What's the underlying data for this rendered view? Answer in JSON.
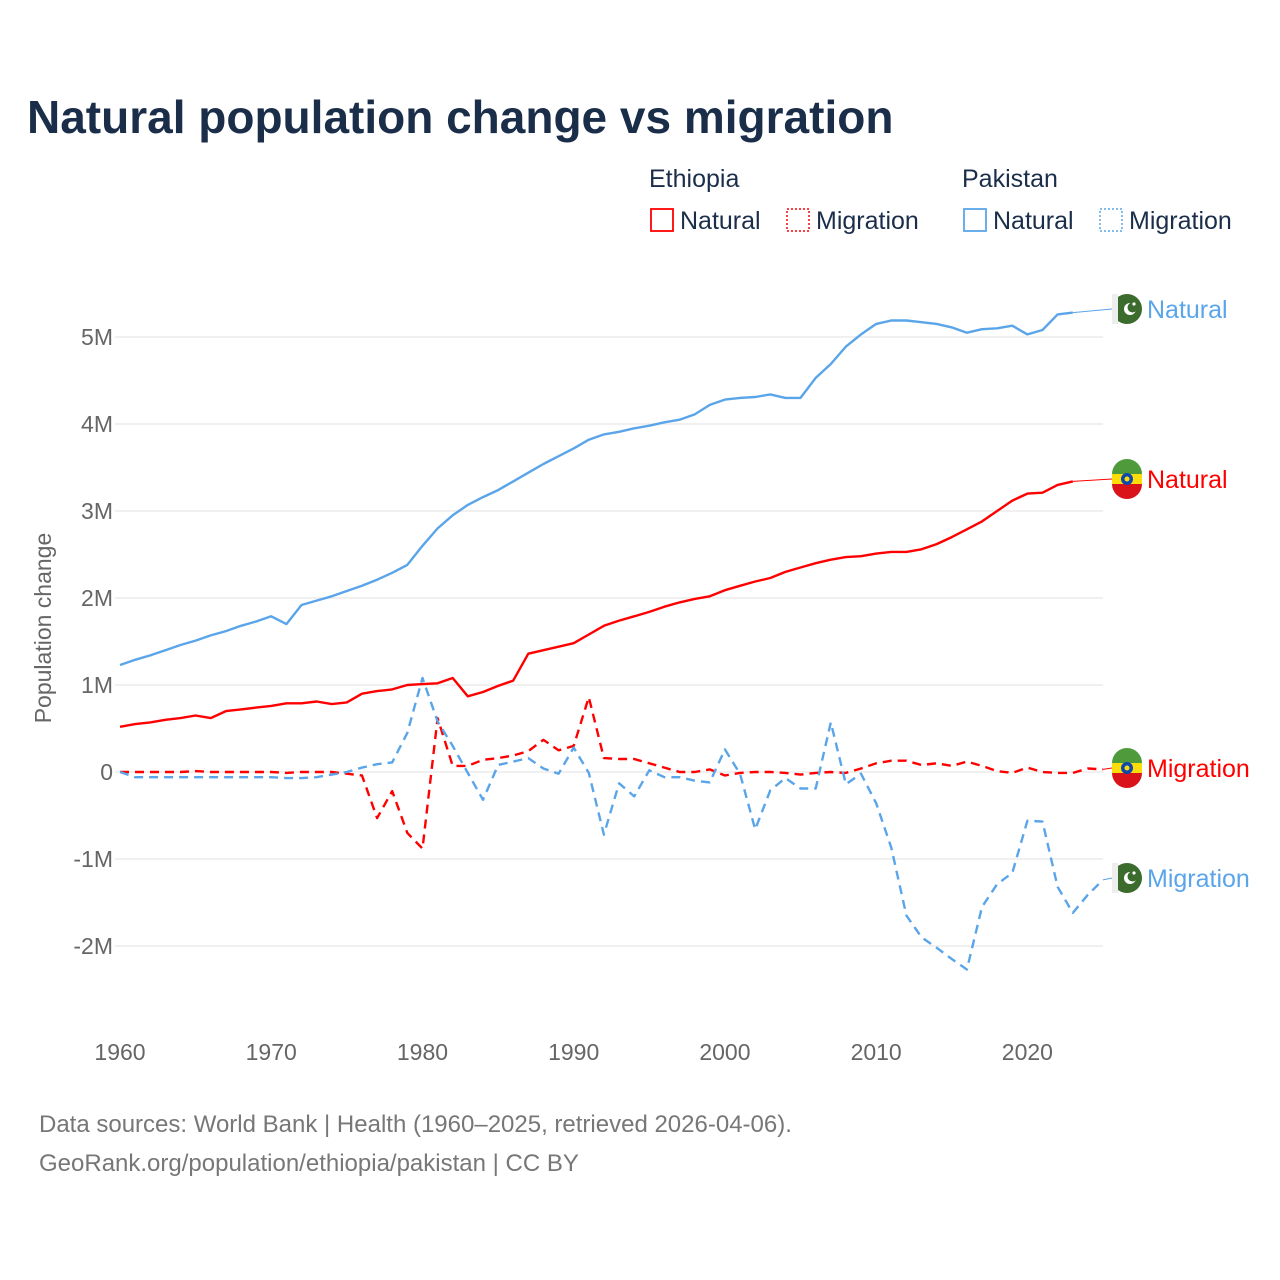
{
  "title": "Natural population change vs migration",
  "legend": {
    "groups": [
      {
        "country": "Ethiopia",
        "items": [
          "Natural",
          "Migration"
        ]
      },
      {
        "country": "Pakistan",
        "items": [
          "Natural",
          "Migration"
        ]
      }
    ]
  },
  "colors": {
    "ethiopia": "#ff0000",
    "pakistan": "#5aa5ea",
    "title": "#1a2e4a"
  },
  "sources": {
    "line1": "Data sources: World Bank | Health (1960–2025, retrieved 2026-04-06).",
    "line2": "GeoRank.org/population/ethiopia/pakistan | CC BY"
  },
  "chart_data": {
    "type": "line",
    "title": "Natural population change vs migration",
    "xlabel": "",
    "ylabel": "Population change",
    "xlim": [
      1960,
      2025
    ],
    "ylim": [
      -2.7,
      5.5
    ],
    "y_unit": "millions",
    "x_ticks": [
      1960,
      1970,
      1980,
      1990,
      2000,
      2010,
      2020
    ],
    "x_tick_labels": [
      "1960",
      "1970",
      "1980",
      "1990",
      "2000",
      "2010",
      "2020"
    ],
    "y_ticks": [
      -2,
      -1,
      0,
      1,
      2,
      3,
      4,
      5
    ],
    "y_tick_labels": [
      "-2M",
      "-1M",
      "0",
      "1M",
      "2M",
      "3M",
      "4M",
      "5M"
    ],
    "grid": true,
    "legend_position": "top-right",
    "series": [
      {
        "name": "Pakistan Natural",
        "country": "Pakistan",
        "kind": "Natural",
        "end_label": "Natural",
        "color": "#5aa5ea",
        "dashed": false,
        "start": 1960,
        "values": [
          1.23,
          1.29,
          1.34,
          1.4,
          1.46,
          1.51,
          1.57,
          1.62,
          1.68,
          1.73,
          1.79,
          1.7,
          1.92,
          1.97,
          2.02,
          2.08,
          2.14,
          2.21,
          2.29,
          2.38,
          2.6,
          2.8,
          2.95,
          3.07,
          3.16,
          3.24,
          3.34,
          3.44,
          3.54,
          3.63,
          3.72,
          3.82,
          3.88,
          3.91,
          3.95,
          3.98,
          4.02,
          4.05,
          4.11,
          4.22,
          4.28,
          4.3,
          4.31,
          4.34,
          4.3,
          4.3,
          4.53,
          4.69,
          4.89,
          5.03,
          5.15,
          5.19,
          5.19,
          5.17,
          5.15,
          5.11,
          5.05,
          5.09,
          5.1,
          5.13,
          5.03,
          5.08,
          5.26,
          5.28
        ]
      },
      {
        "name": "Ethiopia Natural",
        "country": "Ethiopia",
        "kind": "Natural",
        "end_label": "Natural",
        "color": "#ff0000",
        "dashed": false,
        "start": 1960,
        "values": [
          0.52,
          0.55,
          0.57,
          0.6,
          0.62,
          0.65,
          0.62,
          0.7,
          0.72,
          0.74,
          0.76,
          0.79,
          0.79,
          0.81,
          0.78,
          0.8,
          0.9,
          0.93,
          0.95,
          1.0,
          1.01,
          1.02,
          1.08,
          0.87,
          0.92,
          0.99,
          1.05,
          1.36,
          1.4,
          1.44,
          1.48,
          1.58,
          1.68,
          1.74,
          1.79,
          1.84,
          1.9,
          1.95,
          1.99,
          2.02,
          2.09,
          2.14,
          2.19,
          2.23,
          2.3,
          2.35,
          2.4,
          2.44,
          2.47,
          2.48,
          2.51,
          2.53,
          2.53,
          2.56,
          2.62,
          2.7,
          2.79,
          2.88,
          3.0,
          3.12,
          3.2,
          3.21,
          3.3,
          3.34
        ]
      },
      {
        "name": "Ethiopia Migration",
        "country": "Ethiopia",
        "kind": "Migration",
        "end_label": "Migration",
        "color": "#ff0000",
        "dashed": true,
        "start": 1960,
        "values": [
          0.0,
          0.0,
          0.0,
          0.0,
          0.0,
          0.01,
          0.0,
          0.0,
          0.0,
          0.0,
          0.0,
          -0.01,
          0.0,
          0.0,
          0.0,
          -0.02,
          -0.04,
          -0.53,
          -0.22,
          -0.7,
          -0.88,
          0.62,
          0.07,
          0.07,
          0.14,
          0.16,
          0.19,
          0.24,
          0.37,
          0.25,
          0.3,
          0.86,
          0.16,
          0.15,
          0.15,
          0.1,
          0.05,
          0.0,
          0.0,
          0.03,
          -0.04,
          -0.01,
          0.0,
          0.0,
          -0.01,
          -0.03,
          -0.01,
          0.0,
          -0.01,
          0.04,
          0.1,
          0.13,
          0.13,
          0.08,
          0.1,
          0.07,
          0.12,
          0.07,
          0.01,
          -0.01,
          0.05,
          0.0,
          -0.01,
          -0.01,
          0.04,
          0.03
        ]
      },
      {
        "name": "Pakistan Migration",
        "country": "Pakistan",
        "kind": "Migration",
        "end_label": "Migration",
        "color": "#5aa5ea",
        "dashed": true,
        "start": 1960,
        "values": [
          0.0,
          -0.06,
          -0.06,
          -0.06,
          -0.06,
          -0.06,
          -0.06,
          -0.06,
          -0.06,
          -0.06,
          -0.06,
          -0.07,
          -0.07,
          -0.06,
          -0.03,
          0.0,
          0.05,
          0.09,
          0.11,
          0.45,
          1.08,
          0.58,
          0.3,
          -0.01,
          -0.32,
          0.08,
          0.12,
          0.16,
          0.04,
          -0.02,
          0.28,
          -0.01,
          -0.72,
          -0.13,
          -0.28,
          0.02,
          -0.06,
          -0.06,
          -0.1,
          -0.12,
          0.26,
          -0.02,
          -0.66,
          -0.21,
          -0.07,
          -0.19,
          -0.19,
          0.57,
          -0.14,
          -0.02,
          -0.36,
          -0.87,
          -1.65,
          -1.9,
          -2.02,
          -2.15,
          -2.27,
          -1.55,
          -1.29,
          -1.16,
          -0.56,
          -0.57,
          -1.32,
          -1.62,
          -1.41,
          -1.24
        ]
      }
    ]
  }
}
